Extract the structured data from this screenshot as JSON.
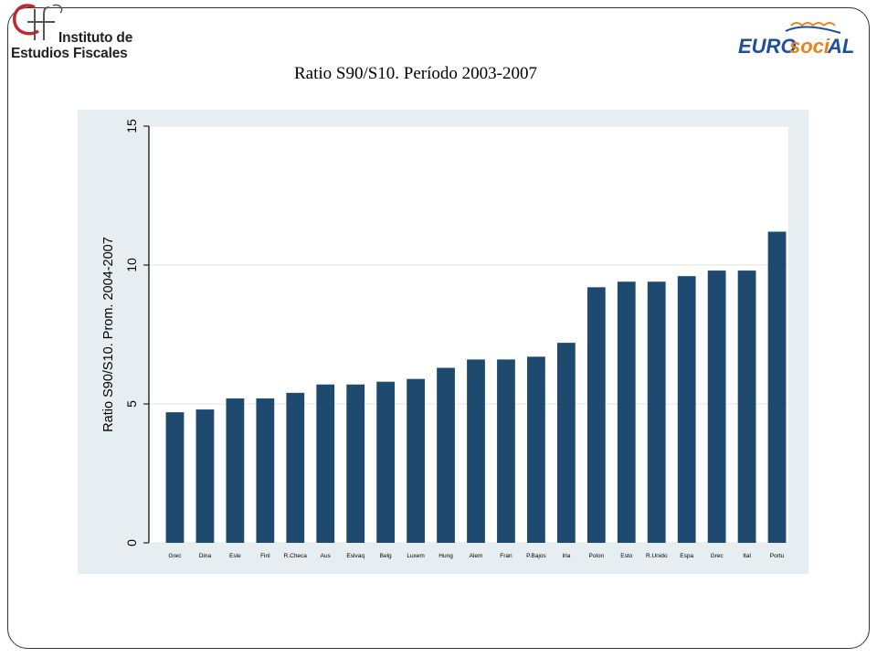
{
  "slide": {
    "title": "Ratio S90/S10. Período 2003-2007"
  },
  "logos": {
    "ief": {
      "line1": "Instituto de",
      "line2": "Estudios Fiscales"
    },
    "eurosocial": {
      "part1": "EURO",
      "part2": "soci",
      "part3": "AL"
    }
  },
  "colors": {
    "bar": "#1f4a70",
    "plot_background": "#ffffff",
    "panel_background": "#e7eef2",
    "ief_red": "#c0282c",
    "eurosocial_blue": "#1e4f9c",
    "eurosocial_orange": "#e8821e"
  },
  "chart_data": {
    "type": "bar",
    "title": "",
    "xlabel": "",
    "ylabel": "Ratio S90/S10. Prom. 2004-2007",
    "ylim": [
      0,
      15
    ],
    "yticks": [
      0,
      5,
      10,
      15
    ],
    "grid": true,
    "categories": [
      "Grec",
      "Dina",
      "Esle",
      "Finl",
      "R.Checa",
      "Aus",
      "Eslvaq",
      "Belg",
      "Luxem",
      "Hung",
      "Alem",
      "Fran",
      "P.Bajos",
      "Irla",
      "Polon",
      "Esto",
      "R.Unido",
      "Espa",
      "Grec",
      "Ital",
      "Portu"
    ],
    "values": [
      4.7,
      4.8,
      5.2,
      5.2,
      5.4,
      5.7,
      5.7,
      5.8,
      5.9,
      6.3,
      6.6,
      6.6,
      6.7,
      7.2,
      9.2,
      9.4,
      9.4,
      9.6,
      9.8,
      9.8,
      11.2
    ]
  }
}
